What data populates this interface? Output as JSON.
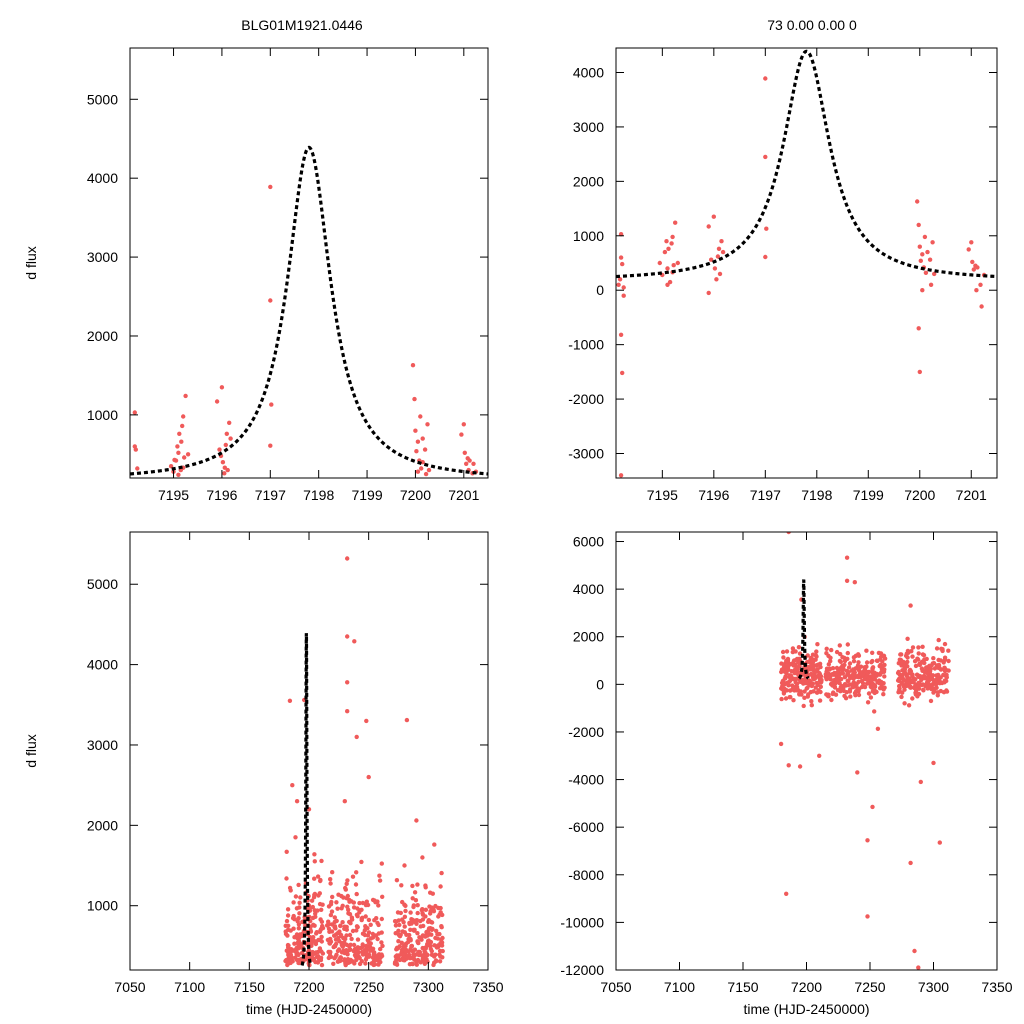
{
  "figure": {
    "title_left": "BLG01M1921.0446",
    "title_right": "73  0.00  0.00  0",
    "point_color": "#f05a5a",
    "model_color": "#000000"
  },
  "model": {
    "t0": 7197.8,
    "peak": 4390,
    "baseline": 160,
    "width": 0.55
  },
  "chart_data": [
    {
      "id": "top-left",
      "type": "scatter",
      "xlabel": "",
      "ylabel": "d flux",
      "xlim": [
        7194.1,
        7201.5
      ],
      "ylim": [
        200,
        5650
      ],
      "xticks": [
        7195,
        7196,
        7197,
        7198,
        7199,
        7200,
        7201
      ],
      "yticks": [
        1000,
        2000,
        3000,
        4000,
        5000
      ],
      "points": [
        [
          7194.2,
          1030
        ],
        [
          7194.2,
          600
        ],
        [
          7194.22,
          560
        ],
        [
          7194.25,
          320
        ],
        [
          7194.95,
          350
        ],
        [
          7195.0,
          280
        ],
        [
          7195.05,
          420
        ],
        [
          7195.08,
          600
        ],
        [
          7195.1,
          520
        ],
        [
          7195.12,
          760
        ],
        [
          7195.15,
          300
        ],
        [
          7195.18,
          860
        ],
        [
          7195.2,
          980
        ],
        [
          7195.22,
          460
        ],
        [
          7195.25,
          1240
        ],
        [
          7195.1,
          240
        ],
        [
          7195.2,
          330
        ],
        [
          7195.3,
          500
        ],
        [
          7195.02,
          430
        ],
        [
          7195.16,
          660
        ],
        [
          7195.9,
          1170
        ],
        [
          7195.95,
          560
        ],
        [
          7196.0,
          1350
        ],
        [
          7196.02,
          400
        ],
        [
          7196.05,
          260
        ],
        [
          7196.08,
          620
        ],
        [
          7196.1,
          760
        ],
        [
          7196.12,
          300
        ],
        [
          7196.15,
          900
        ],
        [
          7196.18,
          700
        ],
        [
          7195.98,
          480
        ],
        [
          7196.06,
          330
        ],
        [
          7197.0,
          3890
        ],
        [
          7197.0,
          2450
        ],
        [
          7197.02,
          1130
        ],
        [
          7197.0,
          610
        ],
        [
          7199.95,
          1630
        ],
        [
          7199.98,
          1200
        ],
        [
          7200.0,
          800
        ],
        [
          7200.02,
          540
        ],
        [
          7200.05,
          660
        ],
        [
          7200.08,
          420
        ],
        [
          7200.1,
          980
        ],
        [
          7200.12,
          320
        ],
        [
          7200.15,
          700
        ],
        [
          7200.2,
          560
        ],
        [
          7200.22,
          250
        ],
        [
          7200.25,
          880
        ],
        [
          7200.28,
          300
        ],
        [
          7200.05,
          280
        ],
        [
          7200.15,
          400
        ],
        [
          7200.95,
          750
        ],
        [
          7201.0,
          880
        ],
        [
          7201.02,
          520
        ],
        [
          7201.05,
          380
        ],
        [
          7201.08,
          450
        ],
        [
          7201.1,
          300
        ],
        [
          7201.12,
          420
        ],
        [
          7201.18,
          260
        ],
        [
          7201.2,
          380
        ],
        [
          7201.25,
          280
        ]
      ]
    },
    {
      "id": "top-right",
      "type": "scatter",
      "xlabel": "",
      "ylabel": "",
      "xlim": [
        7194.1,
        7201.5
      ],
      "ylim": [
        -3450,
        4450
      ],
      "xticks": [
        7195,
        7196,
        7197,
        7198,
        7199,
        7200,
        7201
      ],
      "yticks": [
        -3000,
        -2000,
        -1000,
        0,
        1000,
        2000,
        3000,
        4000
      ],
      "points": [
        [
          7194.2,
          1030
        ],
        [
          7194.2,
          600
        ],
        [
          7194.22,
          480
        ],
        [
          7194.18,
          200
        ],
        [
          7194.25,
          -100
        ],
        [
          7194.2,
          -820
        ],
        [
          7194.22,
          -1520
        ],
        [
          7194.2,
          -3400
        ],
        [
          7194.15,
          100
        ],
        [
          7194.25,
          50
        ],
        [
          7194.95,
          500
        ],
        [
          7195.0,
          280
        ],
        [
          7195.05,
          700
        ],
        [
          7195.08,
          900
        ],
        [
          7195.1,
          400
        ],
        [
          7195.12,
          760
        ],
        [
          7195.15,
          150
        ],
        [
          7195.18,
          860
        ],
        [
          7195.2,
          980
        ],
        [
          7195.22,
          460
        ],
        [
          7195.25,
          1240
        ],
        [
          7195.1,
          100
        ],
        [
          7195.2,
          330
        ],
        [
          7195.3,
          500
        ],
        [
          7195.9,
          1170
        ],
        [
          7195.95,
          560
        ],
        [
          7196.0,
          1350
        ],
        [
          7196.02,
          400
        ],
        [
          7196.05,
          200
        ],
        [
          7196.08,
          620
        ],
        [
          7196.1,
          760
        ],
        [
          7196.12,
          300
        ],
        [
          7196.15,
          900
        ],
        [
          7196.18,
          700
        ],
        [
          7195.9,
          -50
        ],
        [
          7197.0,
          3890
        ],
        [
          7197.0,
          2450
        ],
        [
          7197.02,
          1130
        ],
        [
          7197.0,
          610
        ],
        [
          7199.95,
          1630
        ],
        [
          7199.98,
          1200
        ],
        [
          7200.0,
          800
        ],
        [
          7200.02,
          540
        ],
        [
          7200.05,
          660
        ],
        [
          7200.08,
          420
        ],
        [
          7200.1,
          980
        ],
        [
          7200.12,
          320
        ],
        [
          7200.15,
          700
        ],
        [
          7200.2,
          560
        ],
        [
          7200.22,
          100
        ],
        [
          7200.25,
          880
        ],
        [
          7200.28,
          300
        ],
        [
          7199.98,
          -700
        ],
        [
          7200.0,
          -1500
        ],
        [
          7200.05,
          0
        ],
        [
          7200.95,
          750
        ],
        [
          7201.0,
          880
        ],
        [
          7201.02,
          520
        ],
        [
          7201.05,
          380
        ],
        [
          7201.08,
          450
        ],
        [
          7201.1,
          0
        ],
        [
          7201.12,
          420
        ],
        [
          7201.18,
          100
        ],
        [
          7201.2,
          -300
        ],
        [
          7201.25,
          280
        ]
      ]
    },
    {
      "id": "bottom-left",
      "type": "scatter",
      "xlabel": "time (HJD-2450000)",
      "ylabel": "d flux",
      "xlim": [
        7050,
        7350
      ],
      "ylim": [
        200,
        5650
      ],
      "xticks": [
        7050,
        7100,
        7150,
        7200,
        7250,
        7300,
        7350
      ],
      "yticks": [
        1000,
        2000,
        3000,
        4000,
        5000
      ],
      "points": [
        [
          7232,
          5320
        ],
        [
          7232,
          4350
        ],
        [
          7238,
          4290
        ],
        [
          7232,
          3780
        ],
        [
          7232,
          3420
        ],
        [
          7240,
          3100
        ],
        [
          7248,
          3300
        ],
        [
          7282,
          3310
        ],
        [
          7196,
          3560
        ],
        [
          7184,
          3550
        ],
        [
          7186,
          2500
        ],
        [
          7190,
          2300
        ],
        [
          7200,
          2200
        ],
        [
          7230,
          2300
        ],
        [
          7250,
          2600
        ],
        [
          7290,
          2060
        ],
        [
          7305,
          1760
        ],
        [
          7280,
          1500
        ],
        [
          7295,
          1600
        ]
      ]
    },
    {
      "id": "bottom-right",
      "type": "scatter",
      "xlabel": "time (HJD-2450000)",
      "ylabel": "",
      "xlim": [
        7050,
        7350
      ],
      "ylim": [
        -12000,
        6400
      ],
      "xticks": [
        7050,
        7100,
        7150,
        7200,
        7250,
        7300,
        7350
      ],
      "yticks": [
        -12000,
        -10000,
        -8000,
        -6000,
        -4000,
        -2000,
        0,
        2000,
        4000,
        6000
      ],
      "points": [
        [
          7186,
          6400
        ],
        [
          7232,
          5320
        ],
        [
          7232,
          4350
        ],
        [
          7238,
          4290
        ],
        [
          7282,
          3310
        ],
        [
          7196,
          3560
        ],
        [
          7184,
          -8800
        ],
        [
          7248,
          -9750
        ],
        [
          7248,
          -6550
        ],
        [
          7252,
          -5150
        ],
        [
          7282,
          -7500
        ],
        [
          7285,
          -11200
        ],
        [
          7288,
          -11900
        ],
        [
          7305,
          -6650
        ],
        [
          7186,
          -3400
        ],
        [
          7195,
          -3450
        ],
        [
          7240,
          -3700
        ],
        [
          7300,
          -3300
        ],
        [
          7290,
          -4100
        ],
        [
          7180,
          -2500
        ],
        [
          7210,
          -3000
        ]
      ]
    }
  ]
}
